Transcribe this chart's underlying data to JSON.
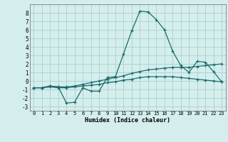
{
  "xlabel": "Humidex (Indice chaleur)",
  "background_color": "#d4eeed",
  "grid_color": "#aacfcc",
  "line_color": "#1a6b6b",
  "xlim": [
    -0.5,
    23.5
  ],
  "ylim": [
    -3.5,
    9.0
  ],
  "xticks": [
    0,
    1,
    2,
    3,
    4,
    5,
    6,
    7,
    8,
    9,
    10,
    11,
    12,
    13,
    14,
    15,
    16,
    17,
    18,
    19,
    20,
    21,
    22,
    23
  ],
  "yticks": [
    -3,
    -2,
    -1,
    0,
    1,
    2,
    3,
    4,
    5,
    6,
    7,
    8
  ],
  "line1_x": [
    0,
    1,
    2,
    3,
    4,
    5,
    6,
    7,
    8,
    9,
    10,
    11,
    12,
    13,
    14,
    15,
    16,
    17,
    18,
    19,
    20,
    21,
    22,
    23
  ],
  "line1_y": [
    -0.8,
    -0.8,
    -0.6,
    -0.7,
    -2.6,
    -2.5,
    -0.8,
    -1.2,
    -1.2,
    0.4,
    0.5,
    3.2,
    5.9,
    8.2,
    8.1,
    7.2,
    6.0,
    3.5,
    1.8,
    1.0,
    2.3,
    2.2,
    1.1,
    -0.1
  ],
  "line2_x": [
    0,
    1,
    2,
    3,
    4,
    5,
    6,
    7,
    8,
    9,
    10,
    11,
    12,
    13,
    14,
    15,
    16,
    17,
    18,
    19,
    20,
    21,
    22,
    23
  ],
  "line2_y": [
    -0.8,
    -0.8,
    -0.6,
    -0.7,
    -0.7,
    -0.6,
    -0.4,
    -0.2,
    0.0,
    0.2,
    0.4,
    0.6,
    0.9,
    1.1,
    1.3,
    1.4,
    1.5,
    1.6,
    1.6,
    1.6,
    1.7,
    1.8,
    1.9,
    2.0
  ],
  "line3_x": [
    0,
    1,
    2,
    3,
    4,
    5,
    6,
    7,
    8,
    9,
    10,
    11,
    12,
    13,
    14,
    15,
    16,
    17,
    18,
    19,
    20,
    21,
    22,
    23
  ],
  "line3_y": [
    -0.8,
    -0.8,
    -0.7,
    -0.8,
    -0.8,
    -0.7,
    -0.6,
    -0.5,
    -0.4,
    -0.2,
    -0.1,
    0.1,
    0.2,
    0.4,
    0.5,
    0.5,
    0.5,
    0.5,
    0.4,
    0.3,
    0.2,
    0.1,
    0.0,
    -0.1
  ]
}
